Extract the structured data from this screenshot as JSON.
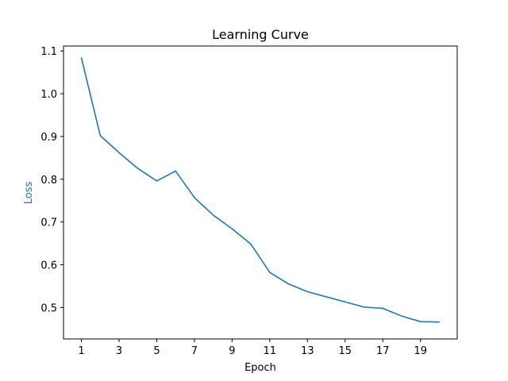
{
  "chart_data": {
    "type": "line",
    "title": "Learning Curve",
    "xlabel": "Epoch",
    "ylabel": "Loss",
    "xlim": [
      0.05,
      20.95
    ],
    "ylim": [
      0.4265,
      1.1115
    ],
    "xticks": [
      1,
      3,
      5,
      7,
      9,
      11,
      13,
      15,
      17,
      19
    ],
    "yticks": [
      0.5,
      0.6,
      0.7,
      0.8,
      0.9,
      1.0,
      1.1
    ],
    "ytick_labels": [
      "0.5",
      "0.6",
      "0.7",
      "0.8",
      "0.9",
      "1.0",
      "1.1"
    ],
    "grid": false,
    "series": [
      {
        "color": "#1f77b4",
        "x": [
          1,
          2,
          3,
          4,
          5,
          6,
          7,
          8,
          9,
          10,
          11,
          12,
          13,
          14,
          15,
          16,
          17,
          18,
          19,
          20
        ],
        "values": [
          1.084,
          0.902,
          0.862,
          0.825,
          0.796,
          0.819,
          0.757,
          0.716,
          0.684,
          0.648,
          0.582,
          0.555,
          0.537,
          0.525,
          0.513,
          0.501,
          0.498,
          0.48,
          0.467,
          0.466
        ]
      }
    ],
    "colors": {
      "ylabel": "#1f77b4",
      "axes": "#000000"
    }
  }
}
